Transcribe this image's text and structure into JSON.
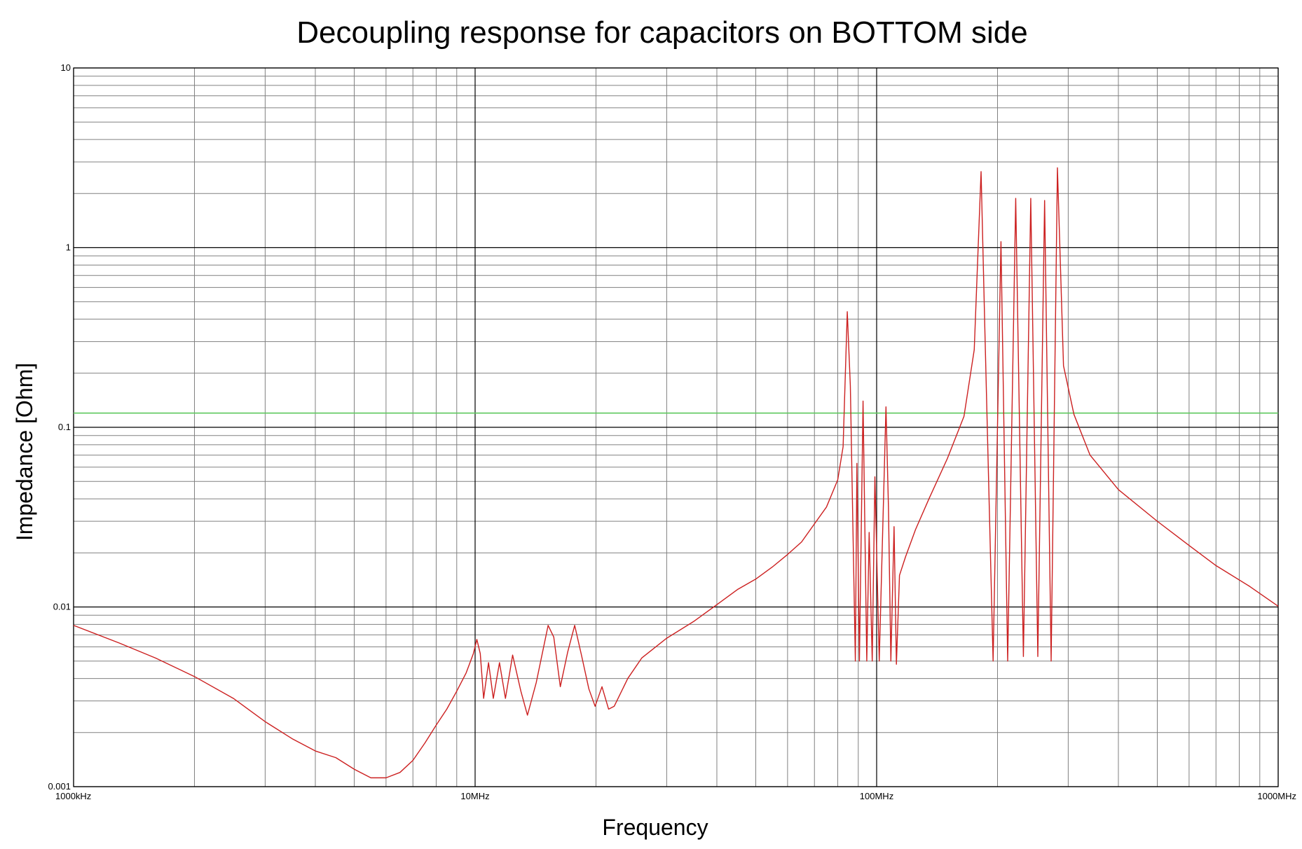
{
  "chart_data": {
    "type": "line",
    "title": "Decoupling response for capacitors on BOTTOM side",
    "xlabel": "Frequency",
    "ylabel": "Impedance [Ohm]",
    "x_scale": "log",
    "y_scale": "log",
    "x_unit": "Hz",
    "xlim": [
      1000000,
      1000000000
    ],
    "ylim": [
      0.001,
      10
    ],
    "grid": true,
    "x_ticks": [
      {
        "value": 1000000,
        "label": "1000kHz"
      },
      {
        "value": 10000000,
        "label": "10MHz"
      },
      {
        "value": 100000000,
        "label": "100MHz"
      },
      {
        "value": 1000000000,
        "label": "1000MHz"
      }
    ],
    "y_ticks": [
      {
        "value": 10,
        "label": "10"
      },
      {
        "value": 1,
        "label": "1"
      },
      {
        "value": 0.1,
        "label": "0.1"
      },
      {
        "value": 0.01,
        "label": "0.01"
      },
      {
        "value": 0.001,
        "label": "0.001"
      }
    ],
    "colors": {
      "response": "#cc2020",
      "target": "#5ec85e",
      "grid_major": "#000000",
      "grid_minor": "#808080"
    },
    "target_impedance": 0.12,
    "series": [
      {
        "points": [
          [
            1000000,
            0.0079
          ],
          [
            1300000,
            0.0063
          ],
          [
            1600000,
            0.0052
          ],
          [
            2000000,
            0.0041
          ],
          [
            2500000,
            0.0031
          ],
          [
            3000000,
            0.0023
          ],
          [
            3500000,
            0.00185
          ],
          [
            4000000,
            0.00158
          ],
          [
            4500000,
            0.00145
          ],
          [
            5000000,
            0.00125
          ],
          [
            5500000,
            0.00112
          ],
          [
            6000000,
            0.00112
          ],
          [
            6500000,
            0.0012
          ],
          [
            7000000,
            0.0014
          ],
          [
            7500000,
            0.00175
          ],
          [
            8000000,
            0.0022
          ],
          [
            8500000,
            0.0027
          ],
          [
            9000000,
            0.0034
          ],
          [
            9500000,
            0.0043
          ],
          [
            9900000,
            0.0055
          ],
          [
            10100000,
            0.0066
          ],
          [
            10300000,
            0.0055
          ],
          [
            10500000,
            0.0031
          ],
          [
            10800000,
            0.0049
          ],
          [
            11100000,
            0.0031
          ],
          [
            11500000,
            0.0049
          ],
          [
            11900000,
            0.0031
          ],
          [
            12400000,
            0.0054
          ],
          [
            13000000,
            0.0034
          ],
          [
            13500000,
            0.0025
          ],
          [
            14200000,
            0.0038
          ],
          [
            15200000,
            0.0079
          ],
          [
            15700000,
            0.0068
          ],
          [
            16300000,
            0.0036
          ],
          [
            17000000,
            0.0056
          ],
          [
            17700000,
            0.0079
          ],
          [
            18400000,
            0.0054
          ],
          [
            19200000,
            0.0035
          ],
          [
            19900000,
            0.0028
          ],
          [
            20700000,
            0.0036
          ],
          [
            21500000,
            0.0027
          ],
          [
            22200000,
            0.0028
          ],
          [
            24000000,
            0.004
          ],
          [
            26000000,
            0.0052
          ],
          [
            30000000,
            0.0067
          ],
          [
            35000000,
            0.0083
          ],
          [
            40000000,
            0.0103
          ],
          [
            45000000,
            0.0125
          ],
          [
            50000000,
            0.0143
          ],
          [
            55000000,
            0.0167
          ],
          [
            60000000,
            0.0196
          ],
          [
            65000000,
            0.023
          ],
          [
            70000000,
            0.029
          ],
          [
            75000000,
            0.036
          ],
          [
            80000000,
            0.051
          ],
          [
            82500000,
            0.078
          ],
          [
            84500000,
            0.44
          ],
          [
            86000000,
            0.17
          ],
          [
            88500000,
            0.005
          ],
          [
            89300000,
            0.063
          ],
          [
            90600000,
            0.005
          ],
          [
            92500000,
            0.14
          ],
          [
            94500000,
            0.005
          ],
          [
            95800000,
            0.026
          ],
          [
            97500000,
            0.005
          ],
          [
            99000000,
            0.053
          ],
          [
            101500000,
            0.005
          ],
          [
            105500000,
            0.13
          ],
          [
            107000000,
            0.036
          ],
          [
            108500000,
            0.005
          ],
          [
            110500000,
            0.028
          ],
          [
            112000000,
            0.0048
          ],
          [
            114000000,
            0.015
          ],
          [
            118000000,
            0.019
          ],
          [
            125000000,
            0.027
          ],
          [
            135000000,
            0.04
          ],
          [
            150000000,
            0.067
          ],
          [
            165000000,
            0.115
          ],
          [
            175000000,
            0.27
          ],
          [
            182000000,
            2.65
          ],
          [
            186000000,
            0.35
          ],
          [
            195000000,
            0.005
          ],
          [
            204000000,
            1.08
          ],
          [
            212000000,
            0.005
          ],
          [
            222000000,
            1.88
          ],
          [
            232000000,
            0.0053
          ],
          [
            242000000,
            1.88
          ],
          [
            252000000,
            0.0053
          ],
          [
            262000000,
            1.83
          ],
          [
            272000000,
            0.005
          ],
          [
            282000000,
            2.78
          ],
          [
            292000000,
            0.22
          ],
          [
            310000000,
            0.118
          ],
          [
            340000000,
            0.07
          ],
          [
            400000000,
            0.045
          ],
          [
            500000000,
            0.03
          ],
          [
            600000000,
            0.022
          ],
          [
            700000000,
            0.017
          ],
          [
            850000000,
            0.013
          ],
          [
            1000000000,
            0.0101
          ]
        ]
      }
    ]
  }
}
